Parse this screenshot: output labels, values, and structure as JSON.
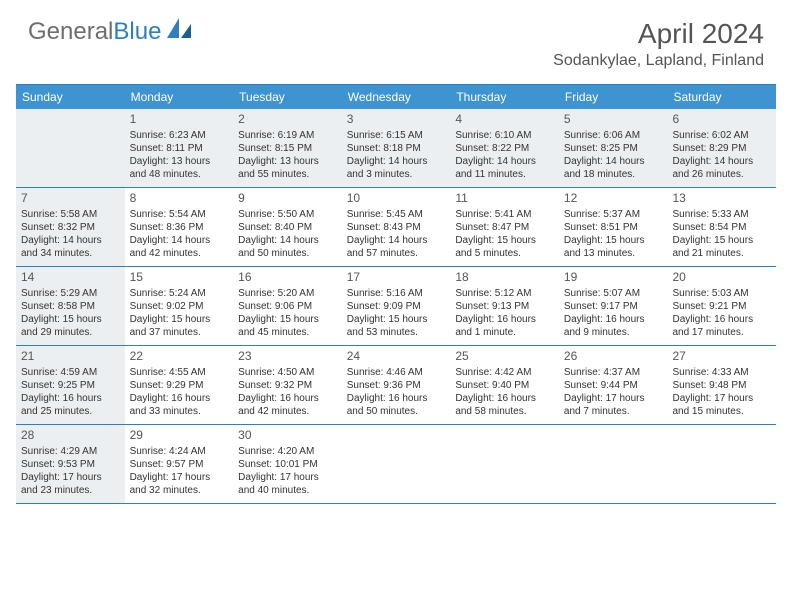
{
  "logo": {
    "part1": "General",
    "part2": "Blue"
  },
  "month_title": "April 2024",
  "location": "Sodankylae, Lapland, Finland",
  "colors": {
    "header_bg": "#3e94d1",
    "border": "#2d7fbf",
    "shade": "#eceff1",
    "text": "#3a3a3a"
  },
  "day_names": [
    "Sunday",
    "Monday",
    "Tuesday",
    "Wednesday",
    "Thursday",
    "Friday",
    "Saturday"
  ],
  "weeks": [
    [
      {
        "blank": true,
        "shade": true
      },
      {
        "n": "1",
        "shade": true,
        "sr": "Sunrise: 6:23 AM",
        "ss": "Sunset: 8:11 PM",
        "d1": "Daylight: 13 hours",
        "d2": "and 48 minutes."
      },
      {
        "n": "2",
        "shade": true,
        "sr": "Sunrise: 6:19 AM",
        "ss": "Sunset: 8:15 PM",
        "d1": "Daylight: 13 hours",
        "d2": "and 55 minutes."
      },
      {
        "n": "3",
        "shade": true,
        "sr": "Sunrise: 6:15 AM",
        "ss": "Sunset: 8:18 PM",
        "d1": "Daylight: 14 hours",
        "d2": "and 3 minutes."
      },
      {
        "n": "4",
        "shade": true,
        "sr": "Sunrise: 6:10 AM",
        "ss": "Sunset: 8:22 PM",
        "d1": "Daylight: 14 hours",
        "d2": "and 11 minutes."
      },
      {
        "n": "5",
        "shade": true,
        "sr": "Sunrise: 6:06 AM",
        "ss": "Sunset: 8:25 PM",
        "d1": "Daylight: 14 hours",
        "d2": "and 18 minutes."
      },
      {
        "n": "6",
        "shade": true,
        "sr": "Sunrise: 6:02 AM",
        "ss": "Sunset: 8:29 PM",
        "d1": "Daylight: 14 hours",
        "d2": "and 26 minutes."
      }
    ],
    [
      {
        "n": "7",
        "shade": true,
        "sr": "Sunrise: 5:58 AM",
        "ss": "Sunset: 8:32 PM",
        "d1": "Daylight: 14 hours",
        "d2": "and 34 minutes."
      },
      {
        "n": "8",
        "sr": "Sunrise: 5:54 AM",
        "ss": "Sunset: 8:36 PM",
        "d1": "Daylight: 14 hours",
        "d2": "and 42 minutes."
      },
      {
        "n": "9",
        "sr": "Sunrise: 5:50 AM",
        "ss": "Sunset: 8:40 PM",
        "d1": "Daylight: 14 hours",
        "d2": "and 50 minutes."
      },
      {
        "n": "10",
        "sr": "Sunrise: 5:45 AM",
        "ss": "Sunset: 8:43 PM",
        "d1": "Daylight: 14 hours",
        "d2": "and 57 minutes."
      },
      {
        "n": "11",
        "sr": "Sunrise: 5:41 AM",
        "ss": "Sunset: 8:47 PM",
        "d1": "Daylight: 15 hours",
        "d2": "and 5 minutes."
      },
      {
        "n": "12",
        "sr": "Sunrise: 5:37 AM",
        "ss": "Sunset: 8:51 PM",
        "d1": "Daylight: 15 hours",
        "d2": "and 13 minutes."
      },
      {
        "n": "13",
        "sr": "Sunrise: 5:33 AM",
        "ss": "Sunset: 8:54 PM",
        "d1": "Daylight: 15 hours",
        "d2": "and 21 minutes."
      }
    ],
    [
      {
        "n": "14",
        "shade": true,
        "sr": "Sunrise: 5:29 AM",
        "ss": "Sunset: 8:58 PM",
        "d1": "Daylight: 15 hours",
        "d2": "and 29 minutes."
      },
      {
        "n": "15",
        "sr": "Sunrise: 5:24 AM",
        "ss": "Sunset: 9:02 PM",
        "d1": "Daylight: 15 hours",
        "d2": "and 37 minutes."
      },
      {
        "n": "16",
        "sr": "Sunrise: 5:20 AM",
        "ss": "Sunset: 9:06 PM",
        "d1": "Daylight: 15 hours",
        "d2": "and 45 minutes."
      },
      {
        "n": "17",
        "sr": "Sunrise: 5:16 AM",
        "ss": "Sunset: 9:09 PM",
        "d1": "Daylight: 15 hours",
        "d2": "and 53 minutes."
      },
      {
        "n": "18",
        "sr": "Sunrise: 5:12 AM",
        "ss": "Sunset: 9:13 PM",
        "d1": "Daylight: 16 hours",
        "d2": "and 1 minute."
      },
      {
        "n": "19",
        "sr": "Sunrise: 5:07 AM",
        "ss": "Sunset: 9:17 PM",
        "d1": "Daylight: 16 hours",
        "d2": "and 9 minutes."
      },
      {
        "n": "20",
        "sr": "Sunrise: 5:03 AM",
        "ss": "Sunset: 9:21 PM",
        "d1": "Daylight: 16 hours",
        "d2": "and 17 minutes."
      }
    ],
    [
      {
        "n": "21",
        "shade": true,
        "sr": "Sunrise: 4:59 AM",
        "ss": "Sunset: 9:25 PM",
        "d1": "Daylight: 16 hours",
        "d2": "and 25 minutes."
      },
      {
        "n": "22",
        "sr": "Sunrise: 4:55 AM",
        "ss": "Sunset: 9:29 PM",
        "d1": "Daylight: 16 hours",
        "d2": "and 33 minutes."
      },
      {
        "n": "23",
        "sr": "Sunrise: 4:50 AM",
        "ss": "Sunset: 9:32 PM",
        "d1": "Daylight: 16 hours",
        "d2": "and 42 minutes."
      },
      {
        "n": "24",
        "sr": "Sunrise: 4:46 AM",
        "ss": "Sunset: 9:36 PM",
        "d1": "Daylight: 16 hours",
        "d2": "and 50 minutes."
      },
      {
        "n": "25",
        "sr": "Sunrise: 4:42 AM",
        "ss": "Sunset: 9:40 PM",
        "d1": "Daylight: 16 hours",
        "d2": "and 58 minutes."
      },
      {
        "n": "26",
        "sr": "Sunrise: 4:37 AM",
        "ss": "Sunset: 9:44 PM",
        "d1": "Daylight: 17 hours",
        "d2": "and 7 minutes."
      },
      {
        "n": "27",
        "sr": "Sunrise: 4:33 AM",
        "ss": "Sunset: 9:48 PM",
        "d1": "Daylight: 17 hours",
        "d2": "and 15 minutes."
      }
    ],
    [
      {
        "n": "28",
        "shade": true,
        "sr": "Sunrise: 4:29 AM",
        "ss": "Sunset: 9:53 PM",
        "d1": "Daylight: 17 hours",
        "d2": "and 23 minutes."
      },
      {
        "n": "29",
        "sr": "Sunrise: 4:24 AM",
        "ss": "Sunset: 9:57 PM",
        "d1": "Daylight: 17 hours",
        "d2": "and 32 minutes."
      },
      {
        "n": "30",
        "sr": "Sunrise: 4:20 AM",
        "ss": "Sunset: 10:01 PM",
        "d1": "Daylight: 17 hours",
        "d2": "and 40 minutes."
      },
      {
        "blank": true
      },
      {
        "blank": true
      },
      {
        "blank": true
      },
      {
        "blank": true
      }
    ]
  ]
}
